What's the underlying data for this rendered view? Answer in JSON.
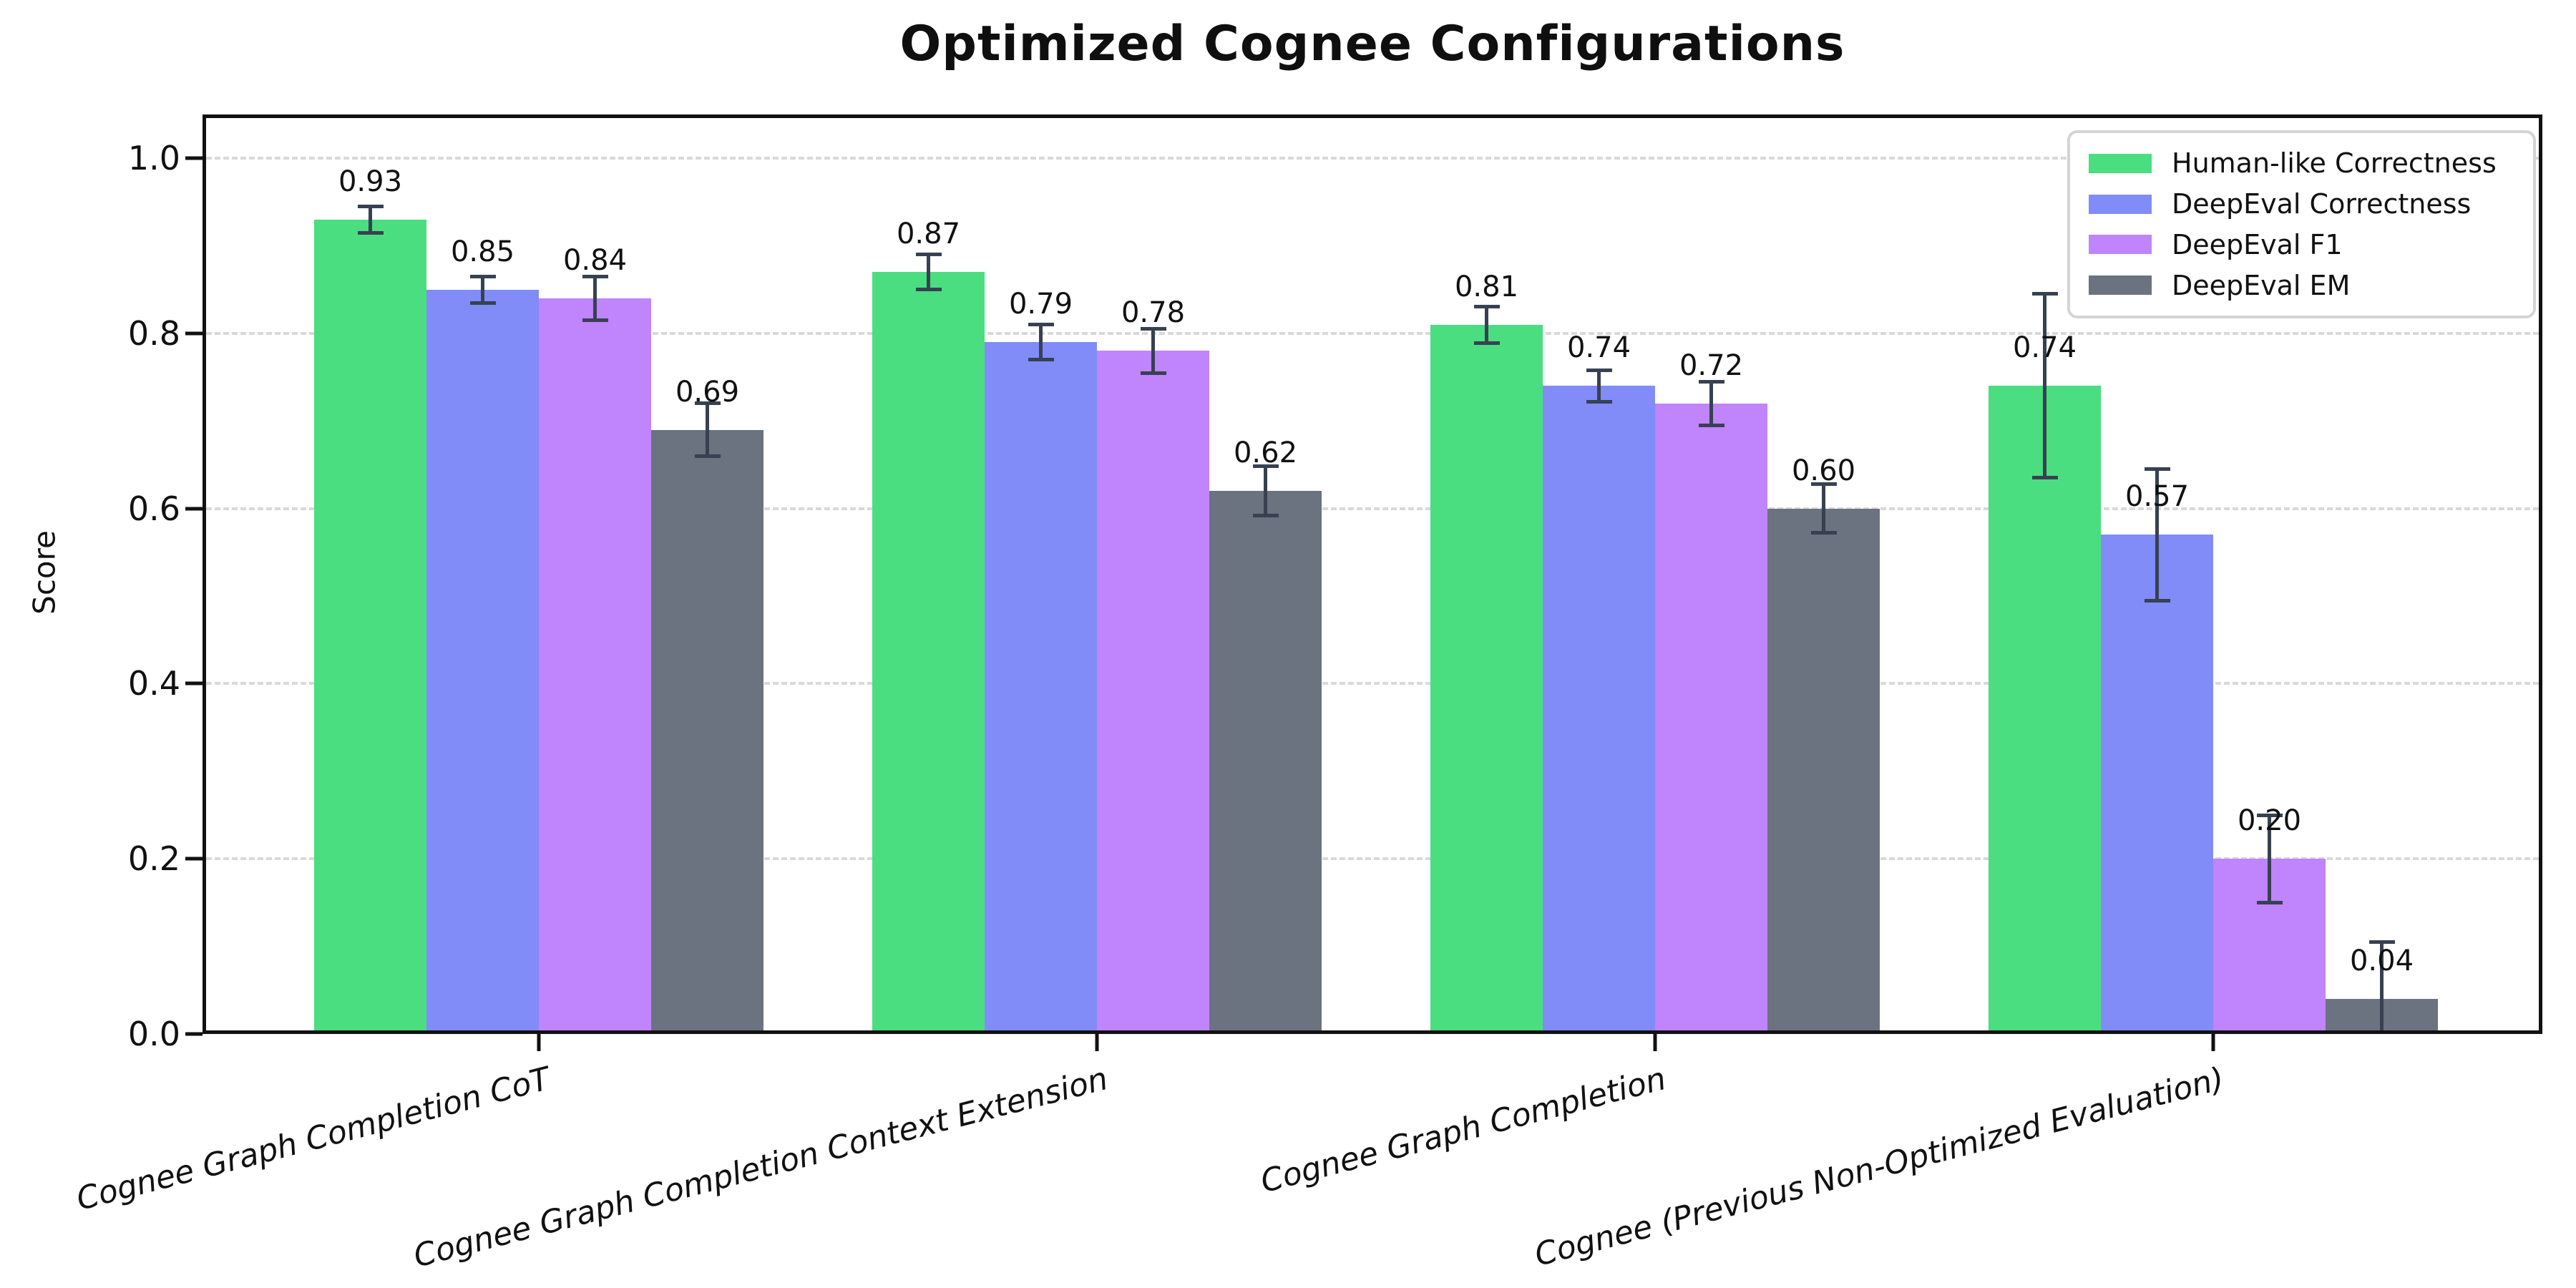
{
  "chart_data": {
    "type": "bar",
    "title": "Optimized Cognee Configurations",
    "ylabel": "Score",
    "xlabel": "",
    "ylim": [
      0,
      1.05
    ],
    "yticks": [
      "0.0",
      "0.2",
      "0.4",
      "0.6",
      "0.8",
      "1.0"
    ],
    "grid": "horizontal-dashed",
    "legend_position": "upper-right",
    "categories": [
      "Cognee Graph Completion CoT",
      "Cognee Graph Completion Context Extension",
      "Cognee Graph Completion",
      "Cognee (Previous Non-Optimized Evaluation)"
    ],
    "series": [
      {
        "name": "Human-like Correctness",
        "color": "#4ade80",
        "values": [
          0.93,
          0.87,
          0.81,
          0.74
        ],
        "errors": [
          0.015,
          0.02,
          0.021,
          0.105
        ]
      },
      {
        "name": "DeepEval Correctness",
        "color": "#818cf8",
        "values": [
          0.85,
          0.79,
          0.74,
          0.57
        ],
        "errors": [
          0.015,
          0.02,
          0.018,
          0.075
        ]
      },
      {
        "name": "DeepEval F1",
        "color": "#c084fc",
        "values": [
          0.84,
          0.78,
          0.72,
          0.2
        ],
        "errors": [
          0.025,
          0.025,
          0.025,
          0.05
        ]
      },
      {
        "name": "DeepEval EM",
        "color": "#6b7280",
        "values": [
          0.69,
          0.62,
          0.6,
          0.04
        ],
        "errors": [
          0.03,
          0.028,
          0.028,
          0.065
        ]
      }
    ],
    "value_label_decimals": 2,
    "error_bar_color": "#374151",
    "gridline_color": "#d9d9d9",
    "spine_color": "#111111"
  }
}
